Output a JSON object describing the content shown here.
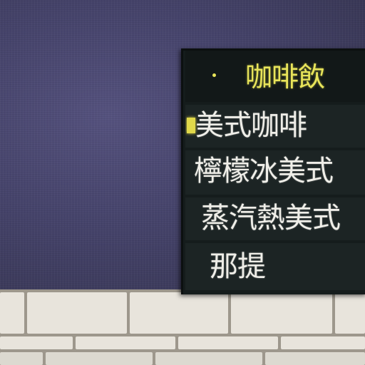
{
  "menu_board": {
    "header": "咖啡飲",
    "items": [
      {
        "label": "美式咖啡"
      },
      {
        "label": "檸檬冰美式"
      },
      {
        "label": "蒸汽熱美式"
      },
      {
        "label": "那提"
      }
    ]
  },
  "colors": {
    "wall": "#45436a",
    "board": "#151c1c",
    "header_text": "#e8e45a",
    "item_text": "#efeee8",
    "tile": "#e8e4dc",
    "grout": "#9d978c"
  }
}
